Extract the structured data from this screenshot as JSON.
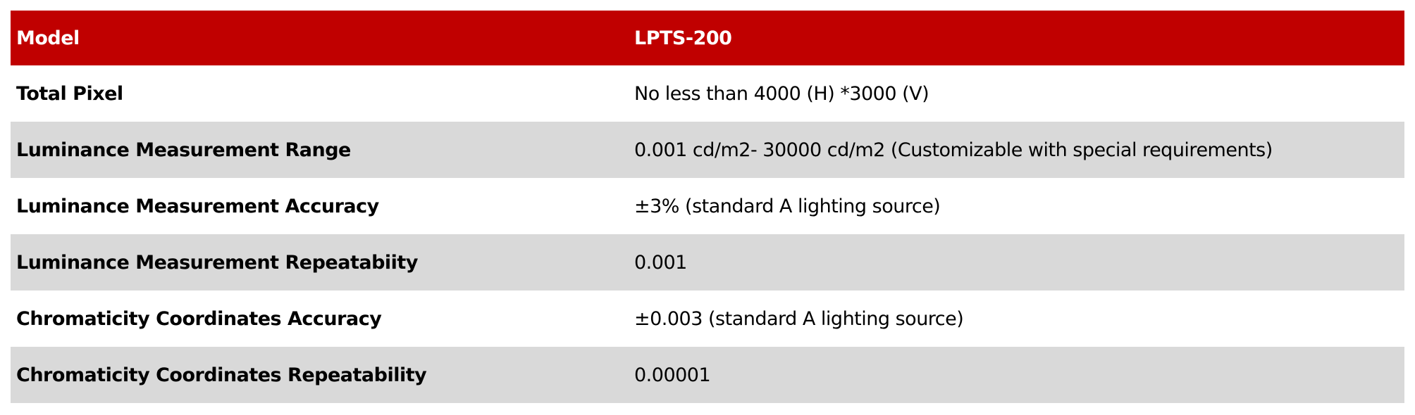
{
  "colors": {
    "header_bg": "#C00000",
    "alt_row_bg": "#D9D9D9"
  },
  "header": {
    "label": "Model",
    "value": "LPTS-200"
  },
  "rows": [
    {
      "label": "Total Pixel",
      "value": "No less than 4000 (H) *3000 (V)"
    },
    {
      "label": "Luminance Measurement Range",
      "value": "0.001 cd/m2- 30000 cd/m2  (Customizable with special requirements)"
    },
    {
      "label": "Luminance Measurement Accuracy",
      "value": "±3% (standard A lighting source)"
    },
    {
      "label": "Luminance Measurement Repeatabiity",
      "value": "0.001"
    },
    {
      "label": "Chromaticity Coordinates Accuracy",
      "value": "±0.003 (standard A lighting source)"
    },
    {
      "label": "Chromaticity Coordinates Repeatability",
      "value": "0.00001"
    }
  ]
}
